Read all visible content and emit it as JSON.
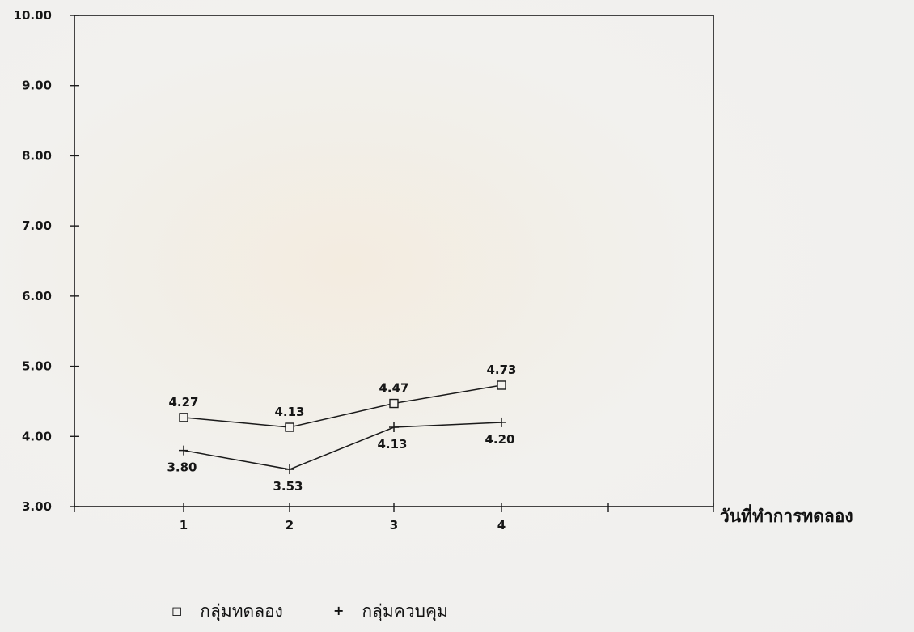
{
  "chart_data": {
    "type": "line",
    "title": "",
    "xlabel": "วันที่ทำการทดลอง",
    "ylabel": "",
    "categories": [
      "1",
      "2",
      "3",
      "4"
    ],
    "ylim": [
      3.0,
      10.0
    ],
    "yticks": [
      "3.00",
      "4.00",
      "5.00",
      "6.00",
      "7.00",
      "8.00",
      "9.00",
      "10.00"
    ],
    "grid": false,
    "legend_position": "bottom",
    "series": [
      {
        "name": "กลุ่มทดลอง",
        "marker": "square",
        "values": [
          4.27,
          4.13,
          4.47,
          4.73
        ],
        "labels": [
          "4.27",
          "4.13",
          "4.47",
          "4.73"
        ],
        "label_position": "above"
      },
      {
        "name": "กลุ่มควบคุม",
        "marker": "plus",
        "values": [
          3.8,
          3.53,
          4.13,
          4.2
        ],
        "labels": [
          "3.80",
          "3.53",
          "4.13",
          "4.20"
        ],
        "label_position": "below"
      }
    ],
    "colors": {
      "line": "#1a1a1a",
      "text": "#161616"
    }
  },
  "legend": {
    "items": [
      {
        "marker_glyph": "◻",
        "label": "กลุ่มทดลอง"
      },
      {
        "marker_glyph": "+",
        "label": "กลุ่มควบคุม"
      }
    ]
  }
}
